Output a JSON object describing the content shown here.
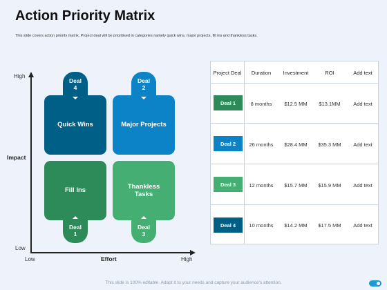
{
  "title": "Action Priority Matrix",
  "subtitle": "This slide covers action priority matrix. Project deal will be prioritised in categories namely quick wins, major projects, fill ins and thankless tasks.",
  "axes": {
    "y_high": "High",
    "y_low": "Low",
    "y_title": "Impact",
    "x_low": "Low",
    "x_high": "High",
    "x_title": "Effort"
  },
  "quadrants": {
    "quick_wins": "Quick Wins",
    "major_projects": "Major Projects",
    "fill_ins": "Fill Ins",
    "thankless_tasks": "Thankless Tasks"
  },
  "deal_tabs": {
    "deal4": {
      "label": "Deal",
      "num": "4"
    },
    "deal2": {
      "label": "Deal",
      "num": "2"
    },
    "deal1": {
      "label": "Deal",
      "num": "1"
    },
    "deal3": {
      "label": "Deal",
      "num": "3"
    }
  },
  "table": {
    "headers": [
      "Project Deal",
      "Duration",
      "Investment",
      "ROI",
      "Add text"
    ],
    "rows": [
      {
        "deal": "Deal 1",
        "duration": "8 months",
        "investment": "$12.5 MM",
        "roi": "$13.1MM",
        "add": "Add text",
        "color": "#2d8a59"
      },
      {
        "deal": "Deal 2",
        "duration": "26 months",
        "investment": "$28.4 MM",
        "roi": "$35.3 MM",
        "add": "Add text",
        "color": "#0c83c7"
      },
      {
        "deal": "Deal 3",
        "duration": "12 months",
        "investment": "$15.7 MM",
        "roi": "$15.9 MM",
        "add": "Add text",
        "color": "#45ae72"
      },
      {
        "deal": "Deal 4",
        "duration": "10 months",
        "investment": "$14.2 MM",
        "roi": "$17.5 MM",
        "add": "Add text",
        "color": "#005f86"
      }
    ]
  },
  "colors": {
    "quick_wins": "#005f86",
    "major_projects": "#0c83c7",
    "fill_ins": "#2d8a59",
    "thankless_tasks": "#45ae72"
  },
  "footer": "This slide is 100% editable. Adapt it to your needs and capture your audience's attention."
}
